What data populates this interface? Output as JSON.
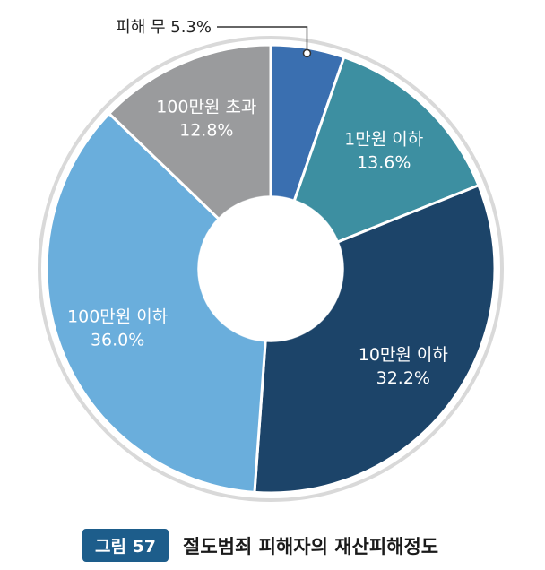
{
  "chart_data": {
    "type": "pie",
    "title": "절도범죄 피해자의 재산피해정도",
    "slices": [
      {
        "category": "피해 무",
        "value": 5.3,
        "label": "5.3%",
        "display": "피해 무 5.3%",
        "color": "#3a6fb0",
        "placement": "callout"
      },
      {
        "category": "1만원 이하",
        "value": 13.6,
        "label": "13.6%",
        "color": "#3d8fa1",
        "placement": "inside"
      },
      {
        "category": "10만원 이하",
        "value": 32.2,
        "label": "32.2%",
        "color": "#1c4469",
        "placement": "inside"
      },
      {
        "category": "100만원 이하",
        "value": 36.0,
        "label": "36.0%",
        "color": "#6aaedc",
        "placement": "inside"
      },
      {
        "category": "100만원 초과",
        "value": 12.8,
        "label": "12.8%",
        "color": "#9a9b9d",
        "placement": "inside"
      }
    ],
    "start": "12 o'clock",
    "direction": "clockwise",
    "donut": true
  },
  "caption": {
    "badge": "그림 57",
    "title": "절도범죄 피해자의 재산피해정도"
  }
}
